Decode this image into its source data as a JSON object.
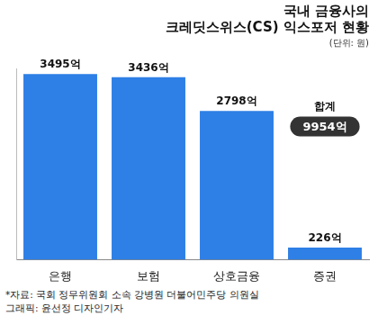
{
  "chart_data": {
    "type": "bar",
    "title": [
      "국내 금융사의",
      "크레딧스위스(CS) 익스포저 현황"
    ],
    "subtitle": "(단위: 원)",
    "categories": [
      "은행",
      "보험",
      "상호금융",
      "증권"
    ],
    "values": [
      3495,
      3436,
      2798,
      226
    ],
    "value_labels": [
      "3495억",
      "3436억",
      "2798억",
      "226억"
    ],
    "data_labels": true,
    "color": "#2e7fe6",
    "ylim": [
      0,
      3600
    ],
    "yticks": [
      0
    ],
    "grid": false,
    "tick_labels": "x",
    "annotations": [
      "합계",
      "9954억"
    ],
    "notes": [
      "*자료: 국회 정무위원회 소속 강병원 더불어민주당 의원실",
      "그래픽: 윤선정 디자인기자"
    ]
  }
}
